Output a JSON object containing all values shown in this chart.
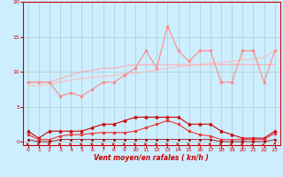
{
  "background_color": "#cceeff",
  "grid_color": "#aacccc",
  "xlabel": "Vent moyen/en rafales ( kn/h )",
  "xlabel_color": "#cc0000",
  "ylabel_color": "#cc0000",
  "yticks": [
    0,
    5,
    10,
    15,
    20
  ],
  "xticks": [
    0,
    1,
    2,
    3,
    4,
    5,
    6,
    7,
    8,
    9,
    10,
    11,
    12,
    13,
    14,
    15,
    16,
    17,
    18,
    19,
    20,
    21,
    22,
    23
  ],
  "xlim": [
    -0.5,
    23.5
  ],
  "ylim": [
    -0.5,
    20
  ],
  "x": [
    0,
    1,
    2,
    3,
    4,
    5,
    6,
    7,
    8,
    9,
    10,
    11,
    12,
    13,
    14,
    15,
    16,
    17,
    18,
    19,
    20,
    21,
    22,
    23
  ],
  "line_upper_jagged_y": [
    8.5,
    8.5,
    8.5,
    6.5,
    7.0,
    6.5,
    7.5,
    8.5,
    8.5,
    9.5,
    10.5,
    13.0,
    10.5,
    16.5,
    13.0,
    11.5,
    13.0,
    13.0,
    8.5,
    8.5,
    13.0,
    13.0,
    8.5,
    13.0
  ],
  "line_upper_jagged_color": "#ff8888",
  "line_upper_smooth1_y": [
    8.5,
    8.5,
    8.5,
    9.0,
    9.5,
    10.0,
    10.2,
    10.5,
    10.5,
    10.8,
    11.0,
    11.0,
    11.0,
    11.0,
    11.0,
    11.0,
    11.0,
    11.0,
    11.0,
    11.0,
    11.0,
    11.0,
    11.0,
    11.0
  ],
  "line_upper_smooth1_color": "#ffaaaa",
  "line_upper_smooth2_y": [
    8.0,
    8.0,
    8.2,
    8.5,
    8.8,
    9.0,
    9.2,
    9.3,
    9.5,
    9.7,
    9.8,
    10.0,
    10.2,
    10.5,
    10.7,
    10.8,
    11.0,
    11.2,
    11.3,
    11.5,
    11.7,
    11.8,
    12.0,
    13.0
  ],
  "line_upper_smooth2_color": "#ffbbbb",
  "line_mid_jagged_y": [
    1.5,
    0.5,
    1.5,
    1.5,
    1.5,
    1.5,
    2.0,
    2.5,
    2.5,
    3.0,
    3.5,
    3.5,
    3.5,
    3.5,
    3.5,
    2.5,
    2.5,
    2.5,
    1.5,
    1.0,
    0.5,
    0.5,
    0.5,
    1.5
  ],
  "line_mid_jagged_color": "#cc0000",
  "line_low1_y": [
    1.0,
    0.3,
    0.3,
    0.8,
    1.0,
    1.0,
    1.2,
    1.3,
    1.3,
    1.3,
    1.5,
    2.0,
    2.5,
    3.0,
    2.5,
    1.5,
    1.0,
    0.8,
    0.3,
    0.3,
    0.3,
    0.3,
    0.3,
    1.2
  ],
  "line_low1_color": "#ee3333",
  "line_low2_y": [
    0.3,
    0.0,
    0.0,
    0.3,
    0.3,
    0.3,
    0.3,
    0.3,
    0.3,
    0.3,
    0.3,
    0.3,
    0.3,
    0.3,
    0.3,
    0.3,
    0.3,
    0.3,
    0.0,
    0.0,
    0.0,
    0.0,
    0.0,
    0.3
  ],
  "line_low2_color": "#990000",
  "arrow_color": "#cc0000",
  "arrow_directions": [
    0,
    0,
    0,
    0,
    0,
    0,
    0,
    0,
    0,
    0,
    0,
    0,
    0,
    0,
    0,
    0,
    0,
    0,
    0,
    0,
    0,
    45,
    45,
    90
  ]
}
